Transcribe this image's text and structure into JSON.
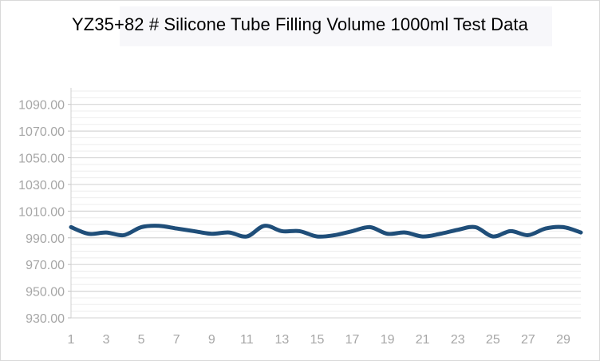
{
  "chart_data": {
    "type": "line",
    "title": "YZ35+82 # Silicone Tube Filling Volume 1000ml Test Data",
    "xlabel": "",
    "ylabel": "",
    "x": [
      1,
      2,
      3,
      4,
      5,
      6,
      7,
      8,
      9,
      10,
      11,
      12,
      13,
      14,
      15,
      16,
      17,
      18,
      19,
      20,
      21,
      22,
      23,
      24,
      25,
      26,
      27,
      28,
      29,
      30
    ],
    "x_tick_labels": [
      "1",
      "3",
      "5",
      "7",
      "9",
      "11",
      "13",
      "15",
      "17",
      "19",
      "21",
      "23",
      "25",
      "27",
      "29"
    ],
    "y_tick_labels": [
      "1090.00",
      "1070.00",
      "1050.00",
      "1030.00",
      "1010.00",
      "990.00",
      "970.00",
      "950.00",
      "930.00"
    ],
    "ylim": [
      930,
      1100
    ],
    "grid": true,
    "legend": "none",
    "series": [
      {
        "name": "",
        "color": "#1f4e79",
        "values": [
          998,
          993,
          994,
          992,
          998,
          999,
          997,
          995,
          993,
          994,
          991,
          999,
          995,
          995,
          991,
          992,
          995,
          998,
          993,
          994,
          991,
          993,
          996,
          998,
          991,
          995,
          992,
          997,
          998,
          994
        ]
      }
    ]
  }
}
